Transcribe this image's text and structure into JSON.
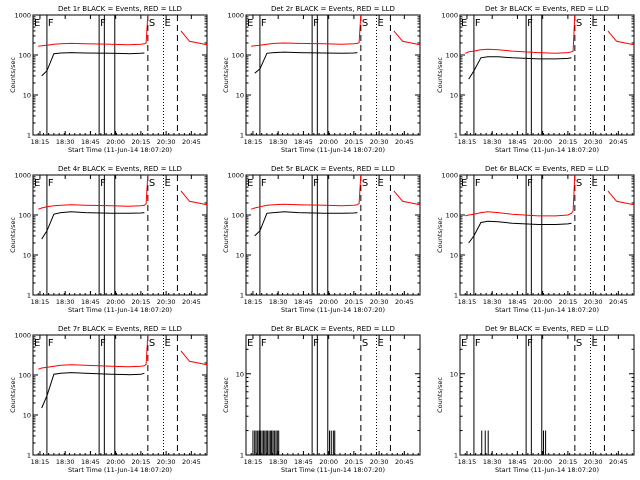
{
  "figure": {
    "background": "#ffffff",
    "axis_color": "#000000",
    "events_color": "#000000",
    "lld_color": "#ff0000"
  },
  "chart_data": [
    {
      "type": "line",
      "detector": "1r",
      "title": "Det 1r BLACK = Events, RED = LLD",
      "xlabel": "Start Time (11-Jun-14 18:07:20)",
      "ylabel": "Counts/sec",
      "xticks": [
        "18:15",
        "18:30",
        "18:45",
        "20:00",
        "20:15",
        "20:30",
        "20:45"
      ],
      "yticks": [
        "1",
        "10",
        "100",
        "1000"
      ],
      "yscale": "log",
      "ylim": [
        1,
        1000
      ],
      "x_minutes": [
        0,
        3,
        5,
        8,
        12,
        16,
        22,
        30,
        45,
        55,
        62,
        64,
        65,
        66,
        75,
        84,
        85,
        90,
        100
      ],
      "events": [
        null,
        null,
        30,
        40,
        108,
        112,
        115,
        112,
        110,
        108,
        110,
        112,
        null,
        null,
        null,
        null,
        null,
        null,
        null
      ],
      "lld": [
        null,
        165,
        170,
        175,
        185,
        190,
        195,
        190,
        185,
        180,
        185,
        190,
        200,
        1000,
        null,
        null,
        400,
        220,
        180
      ],
      "event_lines": [
        {
          "label": "E",
          "style": "dotted",
          "x": 0
        },
        {
          "label": "F",
          "style": "solid",
          "x": 8
        },
        {
          "label": "F",
          "style": "solid",
          "x": 38
        },
        {
          "label": "",
          "style": "solid",
          "x": 41
        },
        {
          "label": "",
          "style": "solid",
          "x": 47
        },
        {
          "label": "S",
          "style": "dashed",
          "x": 66
        },
        {
          "label": "E",
          "style": "dotted",
          "x": 75
        },
        {
          "label": "",
          "style": "dashed",
          "x": 83
        }
      ]
    },
    {
      "type": "line",
      "detector": "2r",
      "title": "Det 2r BLACK = Events, RED = LLD",
      "xlabel": "Start Time (11-Jun-14 18:07:20)",
      "ylabel": "Counts/sec",
      "xticks": [
        "18:15",
        "18:30",
        "18:45",
        "20:00",
        "20:15",
        "20:30",
        "20:45"
      ],
      "yticks": [
        "1",
        "10",
        "100",
        "1000"
      ],
      "yscale": "log",
      "ylim": [
        1,
        1000
      ],
      "x_minutes": [
        0,
        3,
        5,
        8,
        12,
        16,
        22,
        30,
        45,
        55,
        62,
        64,
        65,
        66,
        75,
        84,
        85,
        90,
        100
      ],
      "events": [
        null,
        null,
        35,
        45,
        110,
        115,
        118,
        115,
        112,
        110,
        112,
        115,
        null,
        null,
        null,
        null,
        null,
        null,
        null
      ],
      "lld": [
        null,
        165,
        170,
        175,
        185,
        195,
        200,
        195,
        190,
        185,
        190,
        195,
        205,
        1000,
        null,
        null,
        400,
        220,
        180
      ],
      "event_lines": [
        {
          "label": "E",
          "style": "dotted",
          "x": 0
        },
        {
          "label": "F",
          "style": "solid",
          "x": 8
        },
        {
          "label": "F",
          "style": "solid",
          "x": 38
        },
        {
          "label": "",
          "style": "solid",
          "x": 41
        },
        {
          "label": "",
          "style": "solid",
          "x": 47
        },
        {
          "label": "S",
          "style": "dashed",
          "x": 66
        },
        {
          "label": "E",
          "style": "dotted",
          "x": 75
        },
        {
          "label": "",
          "style": "dashed",
          "x": 83
        }
      ]
    },
    {
      "type": "line",
      "detector": "3r",
      "title": "Det 3r BLACK = Events, RED = LLD",
      "xlabel": "Start Time (11-Jun-14 18:07:20)",
      "ylabel": "Counts/sec",
      "xticks": [
        "18:15",
        "18:30",
        "18:45",
        "20:00",
        "20:15",
        "20:30",
        "20:45"
      ],
      "yticks": [
        "1",
        "10",
        "100",
        "1000"
      ],
      "yscale": "log",
      "ylim": [
        1,
        1000
      ],
      "x_minutes": [
        0,
        3,
        5,
        8,
        12,
        16,
        22,
        30,
        45,
        55,
        62,
        64,
        65,
        66,
        75,
        84,
        85,
        90,
        100
      ],
      "events": [
        null,
        null,
        25,
        40,
        85,
        90,
        90,
        85,
        80,
        80,
        82,
        85,
        null,
        null,
        null,
        null,
        null,
        null,
        null
      ],
      "lld": [
        null,
        110,
        120,
        125,
        135,
        140,
        135,
        125,
        115,
        110,
        115,
        120,
        125,
        1000,
        null,
        null,
        400,
        220,
        180
      ],
      "event_lines": [
        {
          "label": "E",
          "style": "dotted",
          "x": 0
        },
        {
          "label": "F",
          "style": "solid",
          "x": 8
        },
        {
          "label": "F",
          "style": "solid",
          "x": 38
        },
        {
          "label": "",
          "style": "solid",
          "x": 41
        },
        {
          "label": "",
          "style": "solid",
          "x": 47
        },
        {
          "label": "S",
          "style": "dashed",
          "x": 66
        },
        {
          "label": "E",
          "style": "dotted",
          "x": 75
        },
        {
          "label": "",
          "style": "dashed",
          "x": 83
        }
      ]
    },
    {
      "type": "line",
      "detector": "4r",
      "title": "Det 4r BLACK = Events, RED = LLD",
      "xlabel": "Start Time (11-Jun-14 18:07:20)",
      "ylabel": "Counts/sec",
      "xticks": [
        "18:15",
        "18:30",
        "18:45",
        "20:00",
        "20:15",
        "20:30",
        "20:45"
      ],
      "yticks": [
        "1",
        "10",
        "100",
        "1000"
      ],
      "yscale": "log",
      "ylim": [
        1,
        1000
      ],
      "x_minutes": [
        0,
        3,
        5,
        8,
        12,
        16,
        22,
        30,
        45,
        55,
        62,
        64,
        65,
        66,
        75,
        84,
        85,
        90,
        100
      ],
      "events": [
        null,
        null,
        25,
        40,
        105,
        115,
        120,
        115,
        110,
        110,
        112,
        115,
        null,
        null,
        null,
        null,
        null,
        null,
        null
      ],
      "lld": [
        null,
        140,
        150,
        160,
        170,
        175,
        180,
        175,
        170,
        165,
        170,
        175,
        190,
        1000,
        null,
        null,
        400,
        220,
        180
      ],
      "event_lines": [
        {
          "label": "E",
          "style": "dotted",
          "x": 0
        },
        {
          "label": "F",
          "style": "solid",
          "x": 8
        },
        {
          "label": "F",
          "style": "solid",
          "x": 38
        },
        {
          "label": "",
          "style": "solid",
          "x": 41
        },
        {
          "label": "",
          "style": "solid",
          "x": 47
        },
        {
          "label": "S",
          "style": "dashed",
          "x": 66
        },
        {
          "label": "E",
          "style": "dotted",
          "x": 75
        },
        {
          "label": "",
          "style": "dashed",
          "x": 83
        }
      ]
    },
    {
      "type": "line",
      "detector": "5r",
      "title": "Det 5r BLACK = Events, RED = LLD",
      "xlabel": "Start Time (11-Jun-14 18:07:20)",
      "ylabel": "Counts/sec",
      "xticks": [
        "18:15",
        "18:30",
        "18:45",
        "20:00",
        "20:15",
        "20:30",
        "20:45"
      ],
      "yticks": [
        "1",
        "10",
        "100",
        "1000"
      ],
      "yscale": "log",
      "ylim": [
        1,
        1000
      ],
      "x_minutes": [
        0,
        3,
        5,
        8,
        12,
        16,
        22,
        30,
        45,
        55,
        62,
        64,
        65,
        66,
        75,
        84,
        85,
        90,
        100
      ],
      "events": [
        null,
        null,
        30,
        40,
        110,
        115,
        120,
        115,
        110,
        110,
        112,
        115,
        null,
        null,
        null,
        null,
        null,
        null,
        null
      ],
      "lld": [
        null,
        140,
        150,
        160,
        175,
        180,
        185,
        180,
        175,
        170,
        175,
        180,
        195,
        1000,
        null,
        null,
        400,
        220,
        180
      ],
      "event_lines": [
        {
          "label": "E",
          "style": "dotted",
          "x": 0
        },
        {
          "label": "F",
          "style": "solid",
          "x": 8
        },
        {
          "label": "F",
          "style": "solid",
          "x": 38
        },
        {
          "label": "",
          "style": "solid",
          "x": 41
        },
        {
          "label": "",
          "style": "solid",
          "x": 47
        },
        {
          "label": "S",
          "style": "dashed",
          "x": 66
        },
        {
          "label": "E",
          "style": "dotted",
          "x": 75
        },
        {
          "label": "",
          "style": "dashed",
          "x": 83
        }
      ]
    },
    {
      "type": "line",
      "detector": "6r",
      "title": "Det 6r BLACK = Events, RED = LLD",
      "xlabel": "Start Time (11-Jun-14 18:07:20)",
      "ylabel": "Counts/sec",
      "xticks": [
        "18:15",
        "18:30",
        "18:45",
        "20:00",
        "20:15",
        "20:30",
        "20:45"
      ],
      "yticks": [
        "1",
        "10",
        "100",
        "1000"
      ],
      "yscale": "log",
      "ylim": [
        1,
        1000
      ],
      "x_minutes": [
        0,
        3,
        5,
        8,
        12,
        16,
        22,
        30,
        45,
        55,
        62,
        64,
        65,
        66,
        75,
        84,
        85,
        90,
        100
      ],
      "events": [
        null,
        null,
        20,
        30,
        65,
        70,
        68,
        62,
        58,
        58,
        60,
        62,
        null,
        null,
        null,
        null,
        null,
        null,
        null
      ],
      "lld": [
        null,
        95,
        100,
        105,
        115,
        120,
        115,
        105,
        95,
        95,
        100,
        110,
        125,
        1000,
        null,
        null,
        400,
        220,
        180
      ],
      "event_lines": [
        {
          "label": "E",
          "style": "dotted",
          "x": 0
        },
        {
          "label": "F",
          "style": "solid",
          "x": 8
        },
        {
          "label": "F",
          "style": "solid",
          "x": 38
        },
        {
          "label": "",
          "style": "solid",
          "x": 41
        },
        {
          "label": "",
          "style": "solid",
          "x": 47
        },
        {
          "label": "S",
          "style": "dashed",
          "x": 66
        },
        {
          "label": "E",
          "style": "dotted",
          "x": 75
        },
        {
          "label": "",
          "style": "dashed",
          "x": 83
        }
      ]
    },
    {
      "type": "line",
      "detector": "7r",
      "title": "Det 7r BLACK = Events, RED = LLD",
      "xlabel": "Start Time (11-Jun-14 18:07:20)",
      "ylabel": "Counts/sec",
      "xticks": [
        "18:15",
        "18:30",
        "18:45",
        "20:00",
        "20:15",
        "20:30",
        "20:45"
      ],
      "yticks": [
        "1",
        "10",
        "100",
        "1000"
      ],
      "yscale": "log",
      "ylim": [
        1,
        1000
      ],
      "x_minutes": [
        0,
        3,
        5,
        8,
        12,
        16,
        22,
        30,
        45,
        55,
        62,
        64,
        65,
        66,
        75,
        84,
        85,
        90,
        100
      ],
      "events": [
        null,
        null,
        15,
        30,
        105,
        110,
        115,
        110,
        105,
        102,
        105,
        110,
        null,
        null,
        null,
        null,
        null,
        null,
        null
      ],
      "lld": [
        null,
        140,
        150,
        155,
        165,
        175,
        180,
        175,
        165,
        160,
        165,
        170,
        185,
        1000,
        null,
        null,
        400,
        220,
        180
      ],
      "event_lines": [
        {
          "label": "E",
          "style": "dotted",
          "x": 0
        },
        {
          "label": "F",
          "style": "solid",
          "x": 8
        },
        {
          "label": "F",
          "style": "solid",
          "x": 38
        },
        {
          "label": "",
          "style": "solid",
          "x": 41
        },
        {
          "label": "",
          "style": "solid",
          "x": 47
        },
        {
          "label": "S",
          "style": "dashed",
          "x": 66
        },
        {
          "label": "E",
          "style": "dotted",
          "x": 75
        },
        {
          "label": "",
          "style": "dashed",
          "x": 83
        }
      ]
    },
    {
      "type": "line",
      "detector": "8r",
      "title": "Det 8r BLACK = Events, RED = LLD",
      "xlabel": "Start Time (11-Jun-14 18:07:20)",
      "ylabel": "Counts/sec",
      "xticks": [
        "18:15",
        "18:30",
        "18:45",
        "20:00",
        "20:15",
        "20:30",
        "20:45"
      ],
      "yticks": [
        "1",
        "10"
      ],
      "yscale": "log",
      "ylim": [
        1,
        30
      ],
      "spikes": {
        "value": 2,
        "x_minutes": [
          4.0,
          5.0,
          5.8,
          6.7,
          7.5,
          8.3,
          9.2,
          10.0,
          10.8,
          11.6,
          12.3,
          13.2,
          14.0,
          14.7,
          15.5,
          16.3,
          17.2,
          18.0,
          18.8,
          48.0,
          49.0,
          50.2,
          51.0
        ]
      },
      "event_lines": [
        {
          "label": "E",
          "style": "dotted",
          "x": 0
        },
        {
          "label": "F",
          "style": "solid",
          "x": 8
        },
        {
          "label": "F",
          "style": "solid",
          "x": 38
        },
        {
          "label": "",
          "style": "solid",
          "x": 41
        },
        {
          "label": "",
          "style": "solid",
          "x": 47
        },
        {
          "label": "S",
          "style": "dashed",
          "x": 66
        },
        {
          "label": "E",
          "style": "dotted",
          "x": 75
        },
        {
          "label": "",
          "style": "dashed",
          "x": 83
        }
      ]
    },
    {
      "type": "line",
      "detector": "9r",
      "title": "Det 9r BLACK = Events, RED = LLD",
      "xlabel": "Start Time (11-Jun-14 18:07:20)",
      "ylabel": "Counts/sec",
      "xticks": [
        "18:15",
        "18:30",
        "18:45",
        "20:00",
        "20:15",
        "20:30",
        "20:45"
      ],
      "yticks": [
        "1",
        "10"
      ],
      "yscale": "log",
      "ylim": [
        1,
        30
      ],
      "spikes": {
        "value": 2,
        "x_minutes": [
          12.5,
          14.5,
          16.2,
          48.0,
          49.2
        ]
      },
      "event_lines": [
        {
          "label": "E",
          "style": "dotted",
          "x": 0
        },
        {
          "label": "F",
          "style": "solid",
          "x": 8
        },
        {
          "label": "F",
          "style": "solid",
          "x": 38
        },
        {
          "label": "",
          "style": "solid",
          "x": 41
        },
        {
          "label": "",
          "style": "solid",
          "x": 47
        },
        {
          "label": "S",
          "style": "dashed",
          "x": 66
        },
        {
          "label": "E",
          "style": "dotted",
          "x": 75
        },
        {
          "label": "",
          "style": "dashed",
          "x": 83
        }
      ]
    }
  ]
}
